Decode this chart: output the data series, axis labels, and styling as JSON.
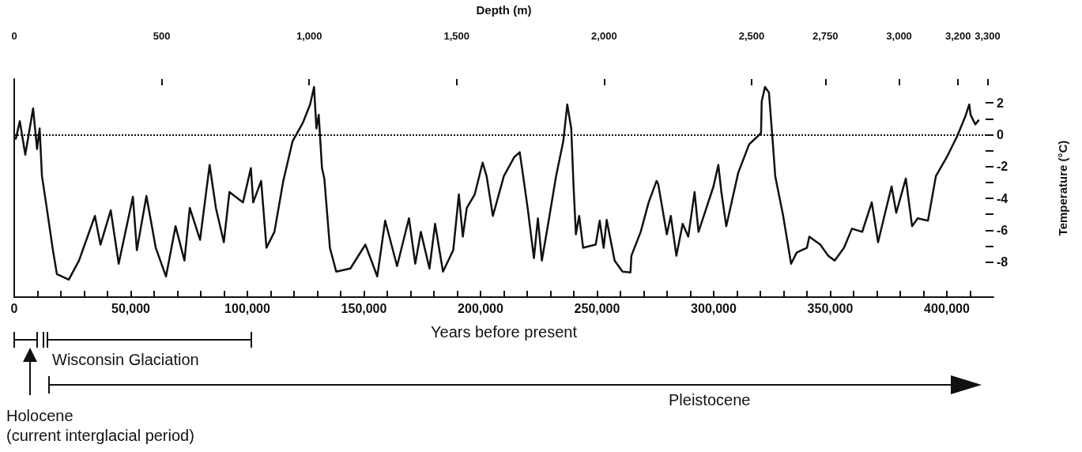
{
  "chart_data": {
    "type": "line",
    "xlabel": "Years before present",
    "x2label": "Depth (m)",
    "ylabel": "Temperature (°C)",
    "color": "#111111",
    "x": [
      700,
      2400,
      4750,
      8100,
      9800,
      10900,
      11900,
      13600,
      16600,
      18300,
      23400,
      27800,
      34600,
      37000,
      41400,
      44800,
      50900,
      52600,
      56700,
      60700,
      65100,
      69200,
      73000,
      75300,
      79700,
      83800,
      86500,
      89900,
      92300,
      98100,
      101500,
      102500,
      105900,
      108200,
      111600,
      115400,
      119400,
      123800,
      126900,
      128600,
      129600,
      130600,
      132000,
      133000,
      135400,
      138100,
      144200,
      150600,
      155700,
      159100,
      164200,
      169300,
      172000,
      174400,
      178100,
      180500,
      183900,
      188300,
      190700,
      192400,
      194100,
      197500,
      200900,
      202600,
      205300,
      210000,
      214500,
      216800,
      217800,
      220200,
      222900,
      224600,
      226300,
      229000,
      232400,
      235500,
      237200,
      238900,
      239900,
      240900,
      242300,
      244000,
      249400,
      251100,
      252800,
      254100,
      257500,
      260900,
      264300,
      264700,
      268700,
      272100,
      275500,
      276200,
      279900,
      281600,
      284000,
      286700,
      289100,
      291800,
      293500,
      299900,
      302000,
      303300,
      305400,
      310500,
      315200,
      320300,
      320600,
      322000,
      323700,
      325400,
      326400,
      329800,
      333200,
      335600,
      340000,
      341000,
      345700,
      349100,
      351900,
      355900,
      359300,
      363700,
      367800,
      370500,
      373200,
      376300,
      378300,
      382400,
      385100,
      387500,
      391900,
      395300,
      400000,
      404400,
      407800,
      409600,
      410200,
      412200,
      413600
    ],
    "values": [
      -0.25,
      0.85,
      -1.25,
      1.65,
      -0.9,
      0.4,
      -2.6,
      -4.25,
      -7.25,
      -8.75,
      -9.1,
      -7.9,
      -5.1,
      -6.9,
      -4.75,
      -8.1,
      -3.9,
      -7.25,
      -3.85,
      -7.1,
      -8.9,
      -5.75,
      -7.9,
      -4.6,
      -6.6,
      -1.9,
      -4.6,
      -6.75,
      -3.6,
      -4.25,
      -2.1,
      -4.25,
      -2.9,
      -7.1,
      -6.1,
      -2.9,
      -0.4,
      0.75,
      1.9,
      3.0,
      0.4,
      1.25,
      -2.1,
      -2.75,
      -7.1,
      -8.6,
      -8.4,
      -6.9,
      -8.9,
      -5.4,
      -8.25,
      -5.25,
      -8.1,
      -6.1,
      -8.4,
      -5.6,
      -8.6,
      -7.25,
      -3.75,
      -6.4,
      -4.6,
      -3.75,
      -1.75,
      -2.6,
      -5.1,
      -2.6,
      -1.4,
      -1.1,
      -2.1,
      -4.6,
      -7.75,
      -5.25,
      -7.9,
      -5.6,
      -2.6,
      -0.4,
      1.9,
      0.4,
      -3.25,
      -6.25,
      -5.1,
      -7.1,
      -6.9,
      -5.4,
      -7.1,
      -5.35,
      -7.9,
      -8.6,
      -8.65,
      -7.6,
      -6.1,
      -4.25,
      -2.9,
      -3.1,
      -6.25,
      -5.1,
      -7.6,
      -5.6,
      -6.4,
      -3.6,
      -6.1,
      -3.25,
      -1.9,
      -3.6,
      -5.75,
      -2.4,
      -0.6,
      0.1,
      2.1,
      3.0,
      2.65,
      -0.6,
      -2.6,
      -5.1,
      -8.1,
      -7.4,
      -7.1,
      -6.4,
      -6.9,
      -7.6,
      -7.9,
      -7.1,
      -5.9,
      -6.1,
      -4.25,
      -6.75,
      -5.1,
      -3.25,
      -4.9,
      -2.75,
      -5.75,
      -5.25,
      -5.4,
      -2.6,
      -1.4,
      -0.1,
      1.1,
      1.9,
      1.25,
      0.65,
      0.9
    ],
    "xlim": [
      0,
      420000
    ],
    "ylim": [
      -10.2,
      3.5
    ],
    "xticks": [
      0,
      {
        "value": 10000,
        "label": null
      },
      {
        "value": 20000,
        "label": null
      },
      {
        "value": 30000,
        "label": null
      },
      {
        "value": 40000,
        "label": null
      },
      {
        "value": 50000,
        "label": "50,000"
      },
      {
        "value": 60000,
        "label": null
      },
      {
        "value": 70000,
        "label": null
      },
      {
        "value": 80000,
        "label": null
      },
      {
        "value": 90000,
        "label": null
      },
      {
        "value": 100000,
        "label": "100,000"
      },
      {
        "value": 110000,
        "label": null
      },
      {
        "value": 120000,
        "label": null
      },
      {
        "value": 130000,
        "label": null
      },
      {
        "value": 140000,
        "label": null
      },
      {
        "value": 150000,
        "label": "150,000"
      },
      {
        "value": 160000,
        "label": null
      },
      {
        "value": 170000,
        "label": null
      },
      {
        "value": 180000,
        "label": null
      },
      {
        "value": 190000,
        "label": null
      },
      {
        "value": 200000,
        "label": "200,000"
      },
      {
        "value": 210000,
        "label": null
      },
      {
        "value": 220000,
        "label": null
      },
      {
        "value": 230000,
        "label": null
      },
      {
        "value": 240000,
        "label": null
      },
      {
        "value": 250000,
        "label": "250,000"
      },
      {
        "value": 260000,
        "label": null
      },
      {
        "value": 270000,
        "label": null
      },
      {
        "value": 280000,
        "label": null
      },
      {
        "value": 290000,
        "label": null
      },
      {
        "value": 300000,
        "label": "300,000"
      },
      {
        "value": 310000,
        "label": null
      },
      {
        "value": 320000,
        "label": null
      },
      {
        "value": 330000,
        "label": null
      },
      {
        "value": 340000,
        "label": null
      },
      {
        "value": 350000,
        "label": "350,000"
      },
      {
        "value": 360000,
        "label": null
      },
      {
        "value": 370000,
        "label": null
      },
      {
        "value": 380000,
        "label": null
      },
      {
        "value": 390000,
        "label": null
      },
      {
        "value": 400000,
        "label": "400,000"
      },
      {
        "value": 410000,
        "label": null
      }
    ],
    "yticks": [
      2,
      {
        "value": 1,
        "label": null
      },
      0,
      {
        "value": -1,
        "label": null
      },
      -2,
      {
        "value": -3,
        "label": null
      },
      -4,
      {
        "value": -5,
        "label": null
      },
      -6,
      {
        "value": -7,
        "label": null
      },
      -8
    ],
    "x2lim": [
      0,
      3320
    ],
    "x2ticks": [
      0,
      {
        "value": 500,
        "label": "500"
      },
      {
        "value": 1000,
        "label": "1,000"
      },
      {
        "value": 1500,
        "label": "1,500"
      },
      {
        "value": 2000,
        "label": "2,000"
      },
      {
        "value": 2500,
        "label": "2,500"
      },
      {
        "value": 2750,
        "label": "2,750"
      },
      {
        "value": 3000,
        "label": "3,000"
      },
      {
        "value": 3200,
        "label": "3,200"
      },
      {
        "value": 3300,
        "label": "3,300"
      }
    ],
    "ref_lines": [
      {
        "axis": "y",
        "value": 0,
        "line_style": "dotted"
      }
    ],
    "annotations": [
      "Wisconsin Glaciation",
      "Holocene\n(current interglacial period)",
      "Pleistocene"
    ]
  }
}
